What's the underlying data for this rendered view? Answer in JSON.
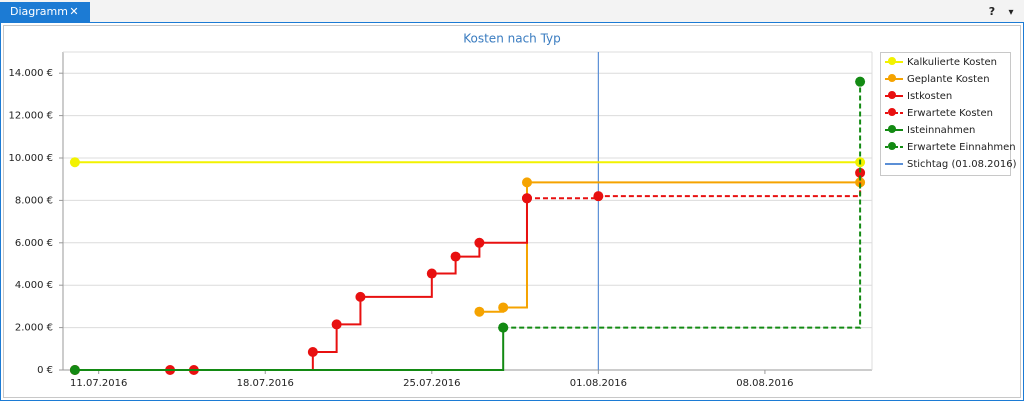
{
  "tab": {
    "title": "Diagramm",
    "close": "✕"
  },
  "toolbar": {
    "help": "?",
    "menu": "▾"
  },
  "chart_data": {
    "type": "step",
    "title": "Kosten nach Typ",
    "xlim": [
      "2016-07-10",
      "2016-08-12"
    ],
    "xticks": [
      {
        "value": "2016-07-11",
        "label": "11.07.2016"
      },
      {
        "value": "2016-07-18",
        "label": "18.07.2016"
      },
      {
        "value": "2016-07-25",
        "label": "25.07.2016"
      },
      {
        "value": "2016-08-01",
        "label": "01.08.2016"
      },
      {
        "value": "2016-08-08",
        "label": "08.08.2016"
      }
    ],
    "ylim": [
      0,
      15000
    ],
    "yticks": [
      {
        "value": 0,
        "label": "0 €"
      },
      {
        "value": 2000,
        "label": "2.000 €"
      },
      {
        "value": 4000,
        "label": "4.000 €"
      },
      {
        "value": 6000,
        "label": "6.000 €"
      },
      {
        "value": 8000,
        "label": "8.000 €"
      },
      {
        "value": 10000,
        "label": "10.000 €"
      },
      {
        "value": 12000,
        "label": "12.000 €"
      },
      {
        "value": 14000,
        "label": "14.000 €"
      }
    ],
    "grid": true,
    "legend": "right",
    "series": [
      {
        "name": "Kalkulierte Kosten",
        "color": "#f2f200",
        "dash": false,
        "x": [
          "2016-07-10",
          "2016-08-12"
        ],
        "values": [
          9800,
          9800
        ]
      },
      {
        "name": "Geplante Kosten",
        "color": "#f5a300",
        "dash": false,
        "x": [
          "2016-07-27",
          "2016-07-28",
          "2016-07-29",
          "2016-08-12"
        ],
        "values": [
          2750,
          2950,
          8850,
          8850
        ]
      },
      {
        "name": "Istkosten",
        "color": "#e81010",
        "dash": false,
        "x": [
          "2016-07-10",
          "2016-07-14",
          "2016-07-15",
          "2016-07-20",
          "2016-07-21",
          "2016-07-22",
          "2016-07-25",
          "2016-07-26",
          "2016-07-27",
          "2016-07-29"
        ],
        "values": [
          0,
          0,
          0,
          850,
          2150,
          3450,
          4550,
          5350,
          6000,
          8100
        ]
      },
      {
        "name": "Erwartete Kosten",
        "color": "#e81010",
        "dash": true,
        "x": [
          "2016-07-29",
          "2016-08-01",
          "2016-08-12"
        ],
        "values": [
          8100,
          8200,
          9300
        ]
      },
      {
        "name": "Isteinnahmen",
        "color": "#138a13",
        "dash": false,
        "x": [
          "2016-07-10",
          "2016-07-28"
        ],
        "values": [
          0,
          2000
        ]
      },
      {
        "name": "Erwartete Einnahmen",
        "color": "#138a13",
        "dash": true,
        "x": [
          "2016-07-28",
          "2016-08-12"
        ],
        "values": [
          2000,
          13600
        ]
      }
    ],
    "reference_lines": [
      {
        "name": "Stichtag (01.08.2016)",
        "x": "2016-08-01",
        "color": "#5b8fd6"
      }
    ]
  }
}
